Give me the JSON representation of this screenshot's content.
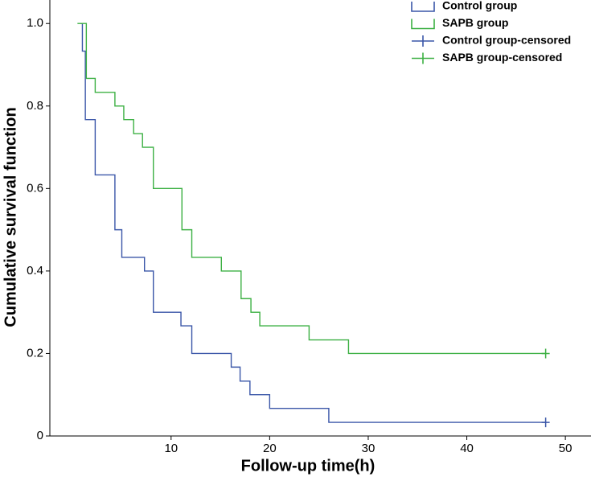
{
  "chart_data": {
    "type": "line",
    "step": "post",
    "x_label": "Follow-up time(h)",
    "y_label": "Cumulative survival function",
    "xlim": [
      -2.3,
      52.6
    ],
    "ylim": [
      0,
      1.057
    ],
    "xticks": [
      10,
      20,
      30,
      40,
      50
    ],
    "yticks": [
      0,
      0.2,
      0.4,
      0.6,
      0.8,
      {
        "value": 1,
        "label": "1.0"
      }
    ],
    "legend": "upper right",
    "series": [
      {
        "name": "Control group",
        "color": "#3a56a8",
        "x": [
          0.8,
          1.0,
          1.3,
          2.3,
          4.3,
          5.0,
          7.3,
          8.2,
          11.0,
          12.1,
          16.1,
          17.0,
          18.0,
          20.0,
          26.0,
          48.0
        ],
        "values": [
          1.0,
          0.933,
          0.767,
          0.633,
          0.5,
          0.433,
          0.4,
          0.3,
          0.267,
          0.2,
          0.167,
          0.133,
          0.1,
          0.067,
          0.033,
          0.033
        ]
      },
      {
        "name": "SAPB group",
        "color": "#3cb043",
        "x": [
          0.5,
          1.4,
          2.3,
          4.3,
          5.2,
          6.2,
          7.1,
          8.2,
          11.1,
          12.1,
          15.1,
          17.1,
          18.1,
          19.0,
          24.0,
          28.0,
          48.0
        ],
        "values": [
          1.0,
          0.867,
          0.833,
          0.8,
          0.767,
          0.733,
          0.7,
          0.6,
          0.5,
          0.433,
          0.4,
          0.333,
          0.3,
          0.267,
          0.233,
          0.2,
          0.2
        ]
      },
      {
        "name": "Control group-censored",
        "color": "#3a56a8",
        "marker": "plus",
        "x": [
          48.0
        ],
        "values": [
          0.033
        ]
      },
      {
        "name": "SAPB group-censored",
        "color": "#3cb043",
        "marker": "plus",
        "x": [
          48.0
        ],
        "values": [
          0.2
        ]
      }
    ]
  }
}
